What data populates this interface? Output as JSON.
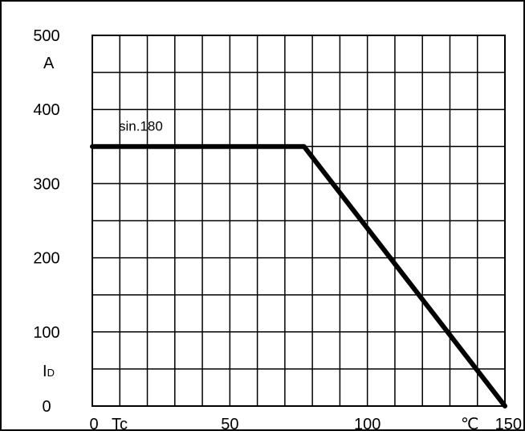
{
  "chart_data": {
    "type": "line",
    "title": "",
    "xlabel": "Tc",
    "xunit": "℃",
    "ylabel": "I",
    "ylabel_subscript": "D",
    "yunit": "A",
    "xlim": [
      0,
      150
    ],
    "ylim": [
      0,
      500
    ],
    "x_ticks": [
      0,
      50,
      100,
      150
    ],
    "y_ticks": [
      0,
      100,
      200,
      300,
      400,
      500
    ],
    "x_grid_step": 10,
    "y_grid_step": 50,
    "grid": true,
    "series": [
      {
        "name": "sin.180",
        "x": [
          0,
          77,
          150
        ],
        "y": [
          350,
          350,
          0
        ]
      }
    ],
    "colors": {
      "line": "#000000",
      "grid": "#000000",
      "background": "#ffffff"
    }
  }
}
